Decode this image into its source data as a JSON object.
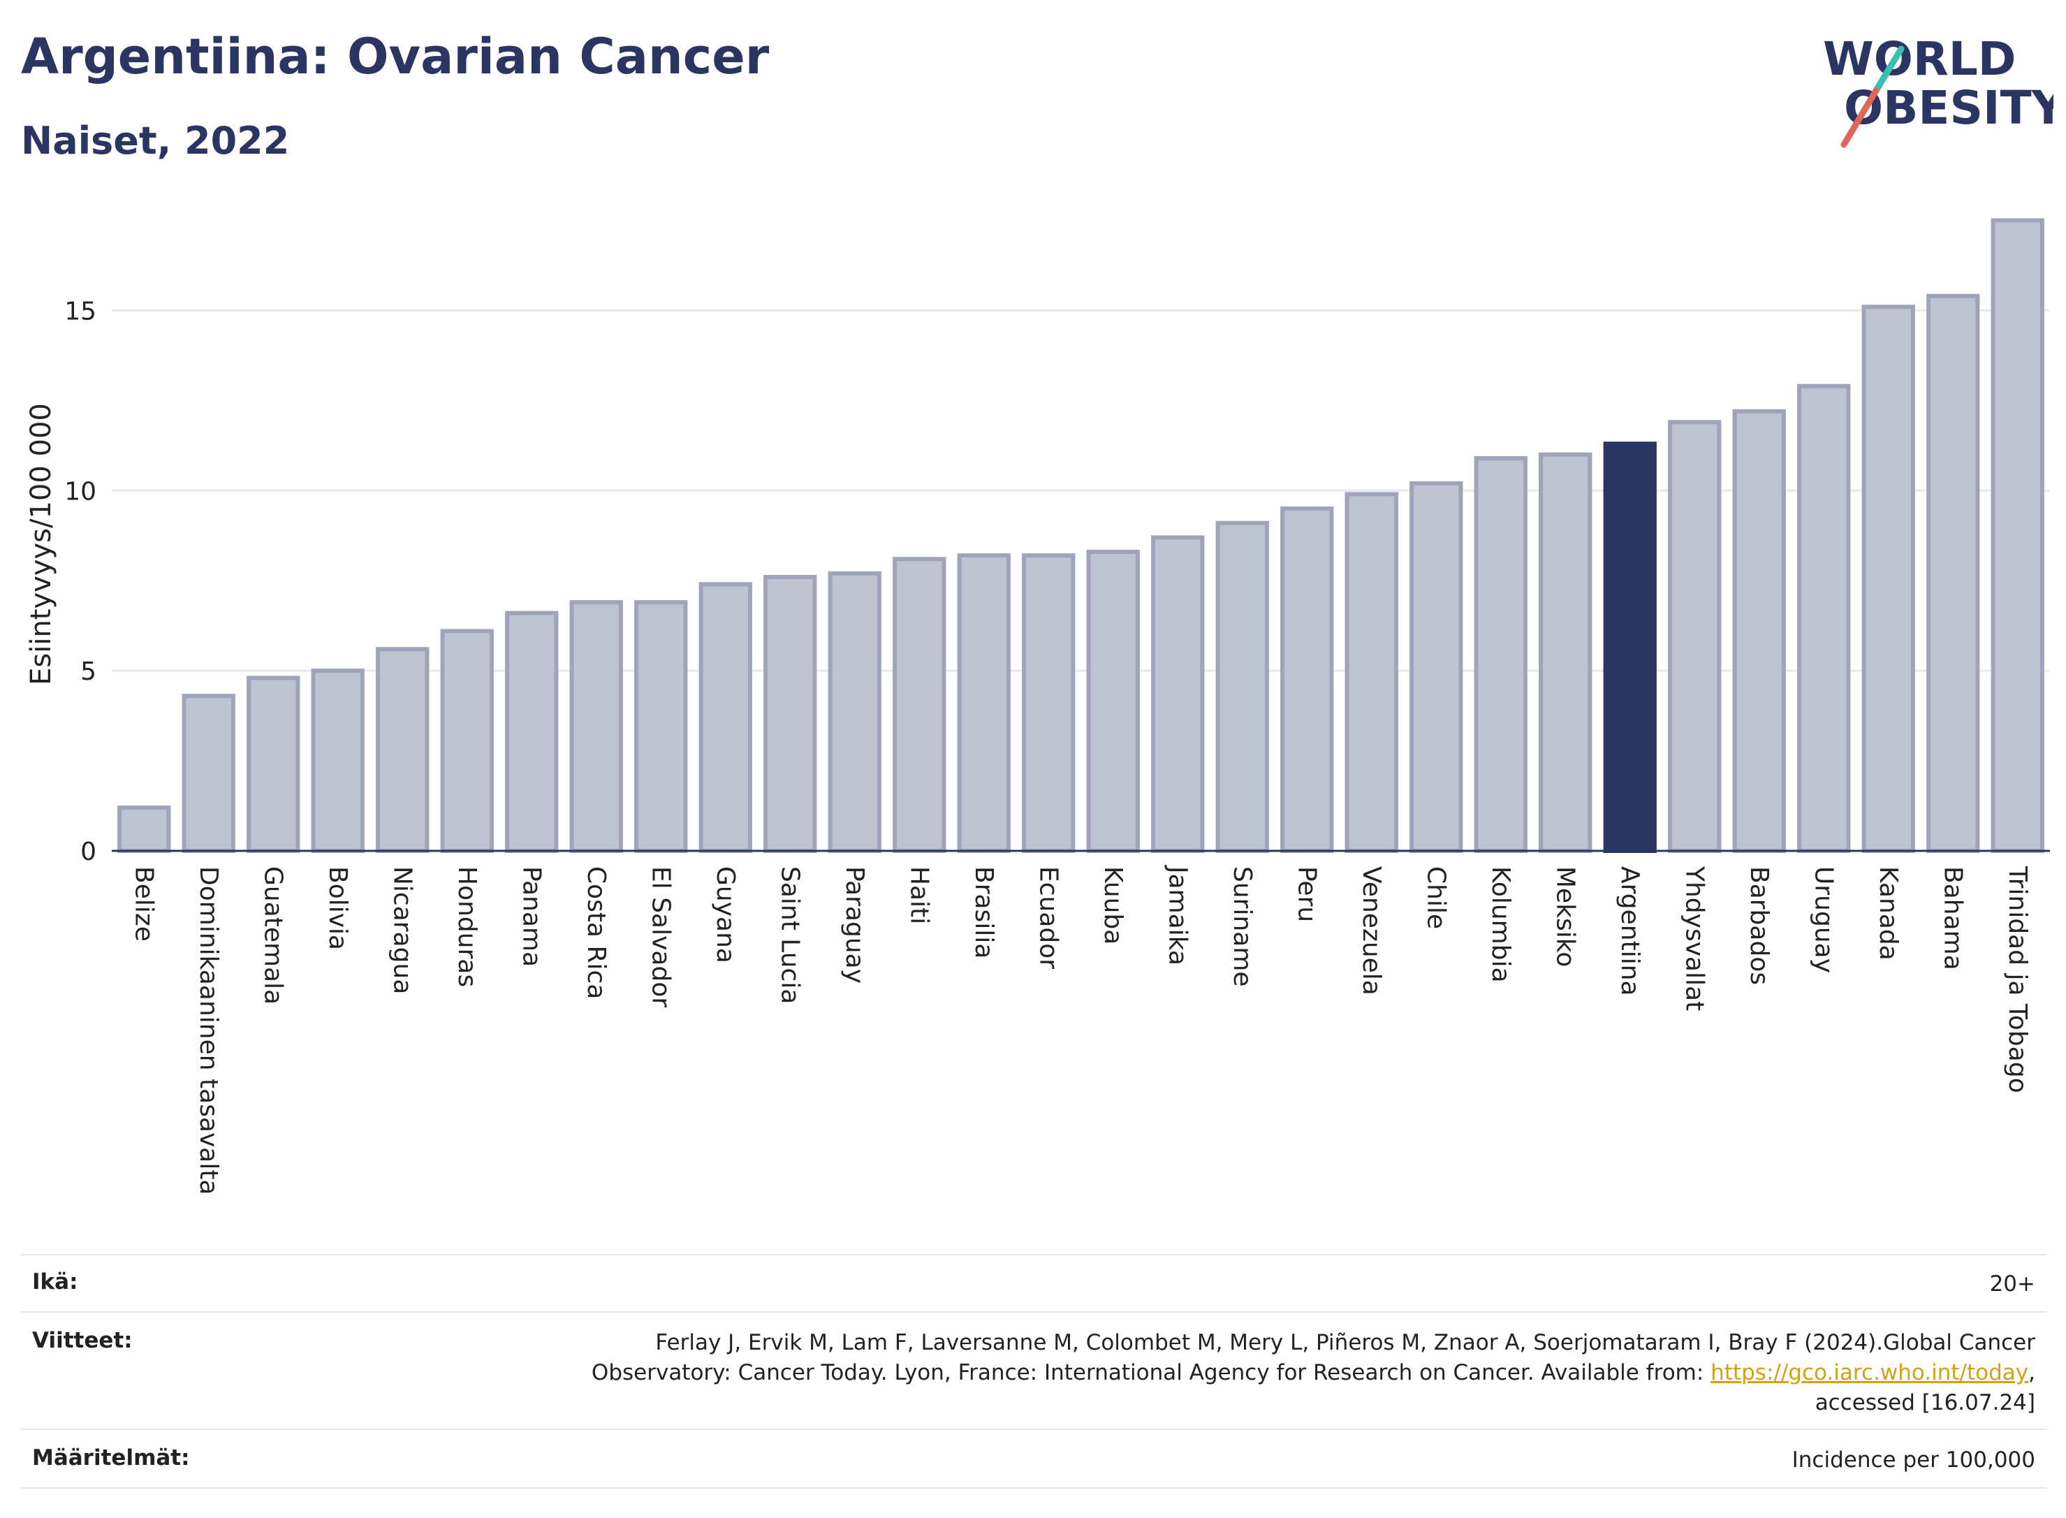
{
  "header": {
    "title": "Argentiina: Ovarian Cancer",
    "subtitle": "Naiset, 2022",
    "logo": {
      "line1": "WORLD",
      "line2": "OBESITY",
      "accent_teal": "#3bbfb5",
      "accent_red": "#e0665a",
      "color": "#2a3561"
    }
  },
  "chart_data": {
    "type": "bar",
    "ylabel": "Esiintyvyys/100 000",
    "ylim": [
      0,
      17.8
    ],
    "yticks": [
      0,
      5,
      10,
      15
    ],
    "grid": true,
    "highlight": "Argentiina",
    "colors": {
      "bar": "#bfc2d0",
      "bar_edge": "#9fa4b9",
      "highlight": "#2a3561",
      "grid": "#e7e9ee",
      "axis": "#2a3561"
    },
    "categories": [
      "Belize",
      "Dominikaaninen tasavalta",
      "Guatemala",
      "Bolivia",
      "Nicaragua",
      "Honduras",
      "Panama",
      "Costa Rica",
      "El Salvador",
      "Guyana",
      "Saint Lucia",
      "Paraguay",
      "Haiti",
      "Brasilia",
      "Ecuador",
      "Kuuba",
      "Jamaika",
      "Suriname",
      "Peru",
      "Venezuela",
      "Chile",
      "Kolumbia",
      "Meksiko",
      "Argentiina",
      "Yhdysvallat",
      "Barbados",
      "Uruguay",
      "Kanada",
      "Bahama",
      "Trinidad ja Tobago"
    ],
    "values": [
      1.2,
      4.3,
      4.8,
      5.0,
      5.6,
      6.1,
      6.6,
      6.9,
      6.9,
      7.4,
      7.6,
      7.7,
      8.1,
      8.2,
      8.2,
      8.3,
      8.7,
      9.1,
      9.5,
      9.9,
      10.2,
      10.9,
      11.0,
      11.3,
      11.9,
      12.2,
      12.9,
      15.1,
      15.4,
      17.5
    ]
  },
  "footer": {
    "age_label": "Ikä:",
    "age_value": "20+",
    "refs_label": "Viitteet:",
    "refs_line1": "Ferlay J, Ervik M, Lam F, Laversanne M, Colombet M, Mery L, Piñeros M, Znaor A, Soerjomataram I, Bray F (2024).Global Cancer",
    "refs_line2_pre": "Observatory: Cancer Today. Lyon, France: International Agency for Research on Cancer. Available from: ",
    "refs_link": "https://gco.iarc.who.int/today",
    "refs_line2_post": ",",
    "refs_line3": "accessed [16.07.24]",
    "defs_label": "Määritelmät:",
    "defs_value": "Incidence per 100,000"
  }
}
